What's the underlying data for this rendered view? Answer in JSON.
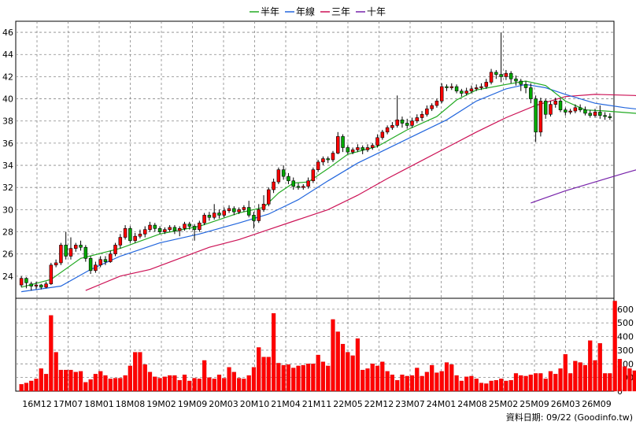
{
  "chart_data": {
    "type": "candlestick",
    "legend": [
      {
        "label": "半年",
        "color": "#22aa22"
      },
      {
        "label": "年線",
        "color": "#2266dd"
      },
      {
        "label": "三年",
        "color": "#cc1155"
      },
      {
        "label": "十年",
        "color": "#7722aa"
      }
    ],
    "x_ticks": [
      "16M12",
      "17M07",
      "18M01",
      "18M08",
      "19M02",
      "19M09",
      "20M03",
      "20M10",
      "21M04",
      "21M11",
      "22M05",
      "22M12",
      "23M07",
      "24M01",
      "24M08",
      "25M02",
      "25M09",
      "26M03",
      "26M09"
    ],
    "price_axis": {
      "ticks": [
        24,
        26,
        28,
        30,
        32,
        34,
        36,
        38,
        40,
        42,
        44,
        46
      ],
      "range": [
        22.0,
        47.0
      ]
    },
    "volume_axis": {
      "ticks": [
        0,
        100,
        200,
        300,
        400,
        500,
        600
      ],
      "range": [
        0,
        680
      ]
    },
    "candles": [
      {
        "o": 23.2,
        "c": 23.8,
        "h": 24.0,
        "l": 23.0
      },
      {
        "o": 23.8,
        "c": 23.4,
        "h": 23.9,
        "l": 22.9
      },
      {
        "o": 23.3,
        "c": 23.1,
        "h": 23.5,
        "l": 22.7
      },
      {
        "o": 23.1,
        "c": 23.2,
        "h": 23.5,
        "l": 22.8
      },
      {
        "o": 23.2,
        "c": 23.0,
        "h": 23.3,
        "l": 22.8
      },
      {
        "o": 23.0,
        "c": 23.3,
        "h": 23.5,
        "l": 22.9
      },
      {
        "o": 23.3,
        "c": 25.0,
        "h": 25.2,
        "l": 23.2
      },
      {
        "o": 25.0,
        "c": 25.2,
        "h": 25.5,
        "l": 24.8
      },
      {
        "o": 25.2,
        "c": 26.8,
        "h": 27.0,
        "l": 25.0
      },
      {
        "o": 26.8,
        "c": 25.8,
        "h": 28.0,
        "l": 25.5
      },
      {
        "o": 25.8,
        "c": 26.5,
        "h": 27.5,
        "l": 25.5
      },
      {
        "o": 26.5,
        "c": 26.8,
        "h": 27.0,
        "l": 26.2
      },
      {
        "o": 26.8,
        "c": 26.6,
        "h": 27.2,
        "l": 26.3
      },
      {
        "o": 26.6,
        "c": 25.6,
        "h": 26.8,
        "l": 25.3
      },
      {
        "o": 25.6,
        "c": 24.5,
        "h": 25.8,
        "l": 24.2
      },
      {
        "o": 24.5,
        "c": 25.0,
        "h": 25.3,
        "l": 24.3
      },
      {
        "o": 25.0,
        "c": 25.5,
        "h": 25.8,
        "l": 24.8
      },
      {
        "o": 25.5,
        "c": 25.3,
        "h": 25.8,
        "l": 25.0
      },
      {
        "o": 25.3,
        "c": 26.0,
        "h": 26.3,
        "l": 25.2
      },
      {
        "o": 26.0,
        "c": 26.8,
        "h": 27.0,
        "l": 25.8
      },
      {
        "o": 26.8,
        "c": 27.5,
        "h": 27.8,
        "l": 26.5
      },
      {
        "o": 27.5,
        "c": 28.3,
        "h": 28.6,
        "l": 27.3
      },
      {
        "o": 28.3,
        "c": 27.2,
        "h": 28.5,
        "l": 27.0
      },
      {
        "o": 27.2,
        "c": 27.6,
        "h": 27.9,
        "l": 27.0
      },
      {
        "o": 27.6,
        "c": 27.8,
        "h": 28.2,
        "l": 27.4
      },
      {
        "o": 27.8,
        "c": 28.2,
        "h": 28.5,
        "l": 27.5
      },
      {
        "o": 28.2,
        "c": 28.6,
        "h": 28.9,
        "l": 28.0
      },
      {
        "o": 28.6,
        "c": 28.3,
        "h": 28.8,
        "l": 28.0
      },
      {
        "o": 28.3,
        "c": 28.0,
        "h": 28.5,
        "l": 27.8
      },
      {
        "o": 28.0,
        "c": 28.2,
        "h": 28.4,
        "l": 27.8
      },
      {
        "o": 28.2,
        "c": 28.4,
        "h": 28.6,
        "l": 28.0
      },
      {
        "o": 28.4,
        "c": 28.1,
        "h": 28.6,
        "l": 27.8
      },
      {
        "o": 28.1,
        "c": 28.3,
        "h": 28.5,
        "l": 27.6
      },
      {
        "o": 28.3,
        "c": 28.7,
        "h": 28.9,
        "l": 28.1
      },
      {
        "o": 28.7,
        "c": 28.5,
        "h": 28.9,
        "l": 28.2
      },
      {
        "o": 28.5,
        "c": 28.2,
        "h": 28.7,
        "l": 27.2
      },
      {
        "o": 28.2,
        "c": 28.8,
        "h": 29.0,
        "l": 28.0
      },
      {
        "o": 28.8,
        "c": 29.5,
        "h": 29.7,
        "l": 28.6
      },
      {
        "o": 29.5,
        "c": 29.3,
        "h": 29.8,
        "l": 29.0
      },
      {
        "o": 29.3,
        "c": 29.7,
        "h": 30.5,
        "l": 29.1
      },
      {
        "o": 29.7,
        "c": 29.5,
        "h": 30.0,
        "l": 29.2
      },
      {
        "o": 29.5,
        "c": 29.9,
        "h": 30.2,
        "l": 29.3
      },
      {
        "o": 29.9,
        "c": 30.1,
        "h": 30.4,
        "l": 29.7
      },
      {
        "o": 30.1,
        "c": 29.8,
        "h": 30.3,
        "l": 29.5
      },
      {
        "o": 29.8,
        "c": 30.0,
        "h": 30.2,
        "l": 29.6
      },
      {
        "o": 30.0,
        "c": 30.2,
        "h": 30.4,
        "l": 29.8
      },
      {
        "o": 30.2,
        "c": 29.5,
        "h": 30.8,
        "l": 29.3
      },
      {
        "o": 29.5,
        "c": 29.0,
        "h": 29.8,
        "l": 28.3
      },
      {
        "o": 29.0,
        "c": 30.0,
        "h": 30.5,
        "l": 28.8
      },
      {
        "o": 30.0,
        "c": 30.5,
        "h": 31.3,
        "l": 29.8
      },
      {
        "o": 30.5,
        "c": 31.8,
        "h": 32.0,
        "l": 30.3
      },
      {
        "o": 31.8,
        "c": 32.5,
        "h": 32.8,
        "l": 31.5
      },
      {
        "o": 32.5,
        "c": 33.6,
        "h": 33.8,
        "l": 32.3
      },
      {
        "o": 33.6,
        "c": 33.0,
        "h": 34.0,
        "l": 32.7
      },
      {
        "o": 33.0,
        "c": 32.6,
        "h": 33.3,
        "l": 32.3
      },
      {
        "o": 32.6,
        "c": 32.1,
        "h": 32.9,
        "l": 31.8
      },
      {
        "o": 32.1,
        "c": 32.0,
        "h": 32.4,
        "l": 31.8
      },
      {
        "o": 32.0,
        "c": 32.1,
        "h": 32.3,
        "l": 31.8
      },
      {
        "o": 32.1,
        "c": 32.6,
        "h": 32.9,
        "l": 31.9
      },
      {
        "o": 32.6,
        "c": 33.6,
        "h": 33.8,
        "l": 32.4
      },
      {
        "o": 33.6,
        "c": 34.3,
        "h": 34.5,
        "l": 33.4
      },
      {
        "o": 34.3,
        "c": 34.6,
        "h": 34.8,
        "l": 34.0
      },
      {
        "o": 34.6,
        "c": 34.5,
        "h": 34.8,
        "l": 34.2
      },
      {
        "o": 34.5,
        "c": 35.1,
        "h": 35.3,
        "l": 34.3
      },
      {
        "o": 35.1,
        "c": 36.6,
        "h": 37.0,
        "l": 35.0
      },
      {
        "o": 36.6,
        "c": 35.6,
        "h": 36.8,
        "l": 35.2
      },
      {
        "o": 35.6,
        "c": 35.2,
        "h": 35.8,
        "l": 35.0
      },
      {
        "o": 35.2,
        "c": 35.4,
        "h": 35.6,
        "l": 35.0
      },
      {
        "o": 35.4,
        "c": 35.6,
        "h": 35.9,
        "l": 35.2
      },
      {
        "o": 35.6,
        "c": 35.4,
        "h": 35.8,
        "l": 35.0
      },
      {
        "o": 35.4,
        "c": 35.6,
        "h": 35.9,
        "l": 35.2
      },
      {
        "o": 35.6,
        "c": 35.8,
        "h": 36.0,
        "l": 35.4
      },
      {
        "o": 35.8,
        "c": 36.5,
        "h": 36.8,
        "l": 35.6
      },
      {
        "o": 36.5,
        "c": 37.0,
        "h": 37.2,
        "l": 36.3
      },
      {
        "o": 37.0,
        "c": 37.4,
        "h": 37.6,
        "l": 36.8
      },
      {
        "o": 37.4,
        "c": 37.6,
        "h": 37.9,
        "l": 37.2
      },
      {
        "o": 37.6,
        "c": 38.1,
        "h": 40.3,
        "l": 37.4
      },
      {
        "o": 38.1,
        "c": 37.8,
        "h": 38.4,
        "l": 37.4
      },
      {
        "o": 37.8,
        "c": 37.6,
        "h": 38.2,
        "l": 37.3
      },
      {
        "o": 37.6,
        "c": 38.0,
        "h": 38.3,
        "l": 37.4
      },
      {
        "o": 38.0,
        "c": 38.3,
        "h": 38.6,
        "l": 37.8
      },
      {
        "o": 38.3,
        "c": 38.6,
        "h": 38.9,
        "l": 38.0
      },
      {
        "o": 38.6,
        "c": 39.1,
        "h": 39.4,
        "l": 38.4
      },
      {
        "o": 39.1,
        "c": 39.4,
        "h": 39.6,
        "l": 38.9
      },
      {
        "o": 39.4,
        "c": 39.8,
        "h": 40.0,
        "l": 39.2
      },
      {
        "o": 39.8,
        "c": 41.1,
        "h": 41.4,
        "l": 39.6
      },
      {
        "o": 41.1,
        "c": 41.0,
        "h": 41.3,
        "l": 40.7
      },
      {
        "o": 41.0,
        "c": 41.1,
        "h": 41.4,
        "l": 40.8
      },
      {
        "o": 41.1,
        "c": 40.7,
        "h": 41.3,
        "l": 40.5
      },
      {
        "o": 40.7,
        "c": 40.5,
        "h": 40.9,
        "l": 40.2
      },
      {
        "o": 40.5,
        "c": 40.7,
        "h": 41.0,
        "l": 40.3
      },
      {
        "o": 40.7,
        "c": 40.9,
        "h": 41.2,
        "l": 40.5
      },
      {
        "o": 40.9,
        "c": 41.0,
        "h": 41.3,
        "l": 40.7
      },
      {
        "o": 41.0,
        "c": 41.1,
        "h": 41.4,
        "l": 40.8
      },
      {
        "o": 41.1,
        "c": 41.5,
        "h": 41.8,
        "l": 40.9
      },
      {
        "o": 41.5,
        "c": 42.4,
        "h": 42.7,
        "l": 41.3
      },
      {
        "o": 42.4,
        "c": 42.2,
        "h": 42.6,
        "l": 41.8
      },
      {
        "o": 42.2,
        "c": 42.0,
        "h": 46.0,
        "l": 41.5
      },
      {
        "o": 42.0,
        "c": 42.3,
        "h": 42.6,
        "l": 41.7
      },
      {
        "o": 42.3,
        "c": 41.8,
        "h": 42.5,
        "l": 41.4
      },
      {
        "o": 41.8,
        "c": 41.6,
        "h": 42.1,
        "l": 41.2
      },
      {
        "o": 41.6,
        "c": 41.3,
        "h": 41.8,
        "l": 40.7
      },
      {
        "o": 41.3,
        "c": 41.0,
        "h": 41.6,
        "l": 40.5
      },
      {
        "o": 41.0,
        "c": 40.0,
        "h": 41.4,
        "l": 39.6
      },
      {
        "o": 40.0,
        "c": 37.0,
        "h": 40.3,
        "l": 36.1
      },
      {
        "o": 37.0,
        "c": 39.8,
        "h": 40.1,
        "l": 36.6
      },
      {
        "o": 39.8,
        "c": 38.6,
        "h": 40.0,
        "l": 38.2
      },
      {
        "o": 38.6,
        "c": 39.5,
        "h": 39.8,
        "l": 38.4
      },
      {
        "o": 39.5,
        "c": 39.8,
        "h": 40.1,
        "l": 39.2
      },
      {
        "o": 39.8,
        "c": 39.0,
        "h": 40.0,
        "l": 38.8
      },
      {
        "o": 39.0,
        "c": 38.8,
        "h": 39.2,
        "l": 38.5
      },
      {
        "o": 38.8,
        "c": 38.9,
        "h": 39.1,
        "l": 38.6
      },
      {
        "o": 38.9,
        "c": 39.2,
        "h": 39.5,
        "l": 38.7
      },
      {
        "o": 39.2,
        "c": 39.0,
        "h": 39.5,
        "l": 38.8
      },
      {
        "o": 39.0,
        "c": 38.7,
        "h": 39.3,
        "l": 38.5
      },
      {
        "o": 38.7,
        "c": 38.5,
        "h": 39.0,
        "l": 38.3
      },
      {
        "o": 38.5,
        "c": 38.8,
        "h": 39.1,
        "l": 38.3
      },
      {
        "o": 38.8,
        "c": 38.5,
        "h": 39.4,
        "l": 38.2
      },
      {
        "o": 38.5,
        "c": 38.4,
        "h": 38.8,
        "l": 38.1
      },
      {
        "o": 38.4,
        "c": 38.3,
        "h": 38.7,
        "l": 38.1
      }
    ],
    "volumes": [
      50,
      60,
      75,
      90,
      165,
      125,
      555,
      285,
      155,
      155,
      155,
      140,
      145,
      65,
      85,
      125,
      145,
      115,
      90,
      95,
      95,
      115,
      185,
      285,
      285,
      195,
      140,
      105,
      95,
      105,
      115,
      115,
      80,
      120,
      75,
      95,
      90,
      225,
      100,
      90,
      120,
      95,
      175,
      140,
      95,
      90,
      115,
      175,
      320,
      250,
      250,
      570,
      205,
      190,
      195,
      170,
      185,
      190,
      200,
      200,
      265,
      215,
      185,
      525,
      435,
      345,
      285,
      260,
      385,
      155,
      165,
      200,
      185,
      215,
      145,
      120,
      80,
      120,
      110,
      115,
      170,
      110,
      140,
      190,
      135,
      145,
      210,
      195,
      115,
      75,
      105,
      110,
      90,
      60,
      55,
      75,
      80,
      90,
      75,
      80,
      130,
      115,
      110,
      120,
      130,
      130,
      90,
      145,
      125,
      165,
      270,
      130,
      220,
      210,
      190,
      370,
      225,
      350,
      130,
      130,
      660,
      235,
      180,
      165,
      150,
      130,
      85,
      80,
      85,
      120,
      185,
      115,
      130,
      155,
      130,
      145,
      150,
      120,
      195,
      135,
      130,
      160,
      130,
      160,
      195,
      120,
      165,
      105,
      200,
      180,
      185,
      480,
      115,
      80,
      50
    ],
    "ma_half": [
      [
        0,
        23.0
      ],
      [
        6,
        23.7
      ],
      [
        12,
        25.6
      ],
      [
        20,
        26.5
      ],
      [
        28,
        27.8
      ],
      [
        36,
        28.5
      ],
      [
        44,
        29.7
      ],
      [
        49,
        30.2
      ],
      [
        52,
        31.5
      ],
      [
        55,
        32.4
      ],
      [
        58,
        32.5
      ],
      [
        62,
        33.7
      ],
      [
        66,
        35.0
      ],
      [
        72,
        35.7
      ],
      [
        78,
        37.2
      ],
      [
        84,
        38.4
      ],
      [
        88,
        39.9
      ],
      [
        92,
        40.8
      ],
      [
        98,
        41.3
      ],
      [
        102,
        41.6
      ],
      [
        106,
        41.2
      ],
      [
        110,
        39.8
      ],
      [
        114,
        39.0
      ],
      [
        118,
        38.9
      ],
      [
        124,
        38.7
      ],
      [
        130,
        38.5
      ]
    ],
    "ma_year": [
      [
        0,
        22.6
      ],
      [
        8,
        23.1
      ],
      [
        14,
        24.6
      ],
      [
        20,
        25.8
      ],
      [
        28,
        27.0
      ],
      [
        36,
        27.8
      ],
      [
        44,
        28.8
      ],
      [
        50,
        29.6
      ],
      [
        56,
        30.9
      ],
      [
        62,
        32.6
      ],
      [
        68,
        34.2
      ],
      [
        74,
        35.5
      ],
      [
        80,
        36.8
      ],
      [
        86,
        38.1
      ],
      [
        92,
        39.8
      ],
      [
        98,
        40.9
      ],
      [
        102,
        41.3
      ],
      [
        106,
        41.0
      ],
      [
        110,
        40.4
      ],
      [
        116,
        39.6
      ],
      [
        122,
        39.2
      ],
      [
        130,
        38.8
      ]
    ],
    "ma_3y": [
      [
        13,
        22.7
      ],
      [
        20,
        24.0
      ],
      [
        26,
        24.6
      ],
      [
        32,
        25.6
      ],
      [
        38,
        26.6
      ],
      [
        44,
        27.3
      ],
      [
        50,
        28.2
      ],
      [
        56,
        29.1
      ],
      [
        62,
        30.0
      ],
      [
        68,
        31.3
      ],
      [
        74,
        32.8
      ],
      [
        80,
        34.2
      ],
      [
        86,
        35.6
      ],
      [
        92,
        37.0
      ],
      [
        98,
        38.3
      ],
      [
        104,
        39.4
      ],
      [
        110,
        40.2
      ],
      [
        116,
        40.4
      ],
      [
        124,
        40.3
      ],
      [
        130,
        40.0
      ]
    ],
    "ma_10y": [
      [
        103,
        30.6
      ],
      [
        110,
        31.7
      ],
      [
        116,
        32.5
      ],
      [
        122,
        33.3
      ],
      [
        130,
        34.3
      ]
    ],
    "footer": "資料日期: 09/22  (Goodinfo.tw)"
  }
}
